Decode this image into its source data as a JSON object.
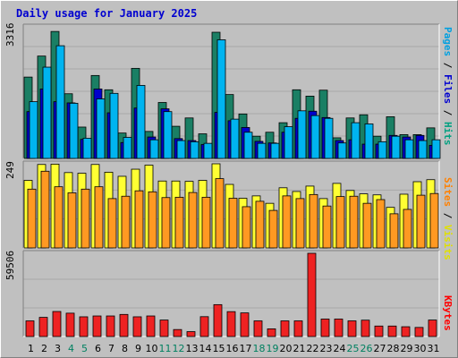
{
  "chart_data": {
    "type": "bar",
    "title": "Daily usage for January 2025",
    "days": [
      "1",
      "2",
      "3",
      "4",
      "5",
      "6",
      "7",
      "8",
      "9",
      "10",
      "11",
      "12",
      "13",
      "14",
      "15",
      "16",
      "17",
      "18",
      "19",
      "20",
      "21",
      "22",
      "23",
      "24",
      "25",
      "26",
      "27",
      "28",
      "29",
      "30",
      "31"
    ],
    "weekend_days": [
      "4",
      "5",
      "11",
      "12",
      "18",
      "19",
      "25",
      "26"
    ],
    "panels": [
      {
        "ymax_label": "3316",
        "ymax": 3316,
        "legend_parts": [
          {
            "text": "Pages",
            "color": "#00a0e0"
          },
          {
            "text": " / ",
            "color": "#000000"
          },
          {
            "text": "Files",
            "color": "#0000d0"
          },
          {
            "text": " / ",
            "color": "#000000"
          },
          {
            "text": "Hits",
            "color": "#00a080"
          }
        ],
        "series": [
          {
            "name": "Hits",
            "color": "#1a7f64",
            "values": [
              2050,
              2580,
              3200,
              1630,
              790,
              2090,
              1730,
              640,
              2270,
              680,
              1410,
              810,
              1020,
              620,
              3180,
              1610,
              1120,
              560,
              660,
              900,
              1730,
              1570,
              1720,
              520,
              1020,
              1100,
              560,
              1050,
              600,
              600,
              770
            ]
          },
          {
            "name": "Files",
            "color": "#0000cc",
            "values": [
              1180,
              1750,
              1430,
              1400,
              480,
              1750,
              1150,
              400,
              1270,
              540,
              1250,
              500,
              450,
              350,
              1160,
              950,
              780,
              430,
              390,
              660,
              1010,
              1190,
              1030,
              450,
              470,
              360,
              360,
              580,
              540,
              580,
              330
            ]
          },
          {
            "name": "Pages",
            "color": "#00b4f0",
            "values": [
              1430,
              2300,
              2840,
              1390,
              510,
              1500,
              1640,
              530,
              1840,
              470,
              1180,
              450,
              420,
              380,
              2990,
              990,
              660,
              380,
              380,
              800,
              1200,
              1080,
              1010,
              390,
              900,
              870,
              420,
              560,
              470,
              450,
              470
            ]
          }
        ]
      },
      {
        "ymax_label": "249",
        "ymax": 249,
        "legend_parts": [
          {
            "text": "Sites",
            "color": "#ff8000"
          },
          {
            "text": " / ",
            "color": "#000000"
          },
          {
            "text": "Visits",
            "color": "#e0e000"
          }
        ],
        "series": [
          {
            "name": "Visits",
            "color": "#ffff33",
            "values": [
              200,
              247,
              248,
              223,
              221,
              247,
              224,
              212,
              233,
              245,
              198,
              198,
              197,
              200,
              249,
              188,
              147,
              154,
              132,
              178,
              167,
              183,
              146,
              191,
              170,
              160,
              157,
              120,
              159,
              196,
              202
            ]
          },
          {
            "name": "Sites",
            "color": "#ff9922",
            "values": [
              174,
              227,
              181,
              163,
              174,
              181,
              146,
              153,
              169,
              166,
              149,
              150,
              164,
              150,
              205,
              147,
              122,
              138,
              111,
              154,
              146,
              158,
              124,
              152,
              153,
              132,
              143,
              101,
              114,
              156,
              161
            ]
          }
        ]
      },
      {
        "ymax_label": "59506",
        "ymax": 59506,
        "legend_parts": [
          {
            "text": "KBytes",
            "color": "#ff0000"
          }
        ],
        "series": [
          {
            "name": "KBytes",
            "color": "#ee2222",
            "values": [
              11200,
              13700,
              17900,
              16700,
              14100,
              14700,
              14700,
              15800,
              14100,
              14700,
              11800,
              5000,
              3500,
              14200,
              22800,
              17800,
              16900,
              11200,
              5500,
              11200,
              11200,
              59506,
              12500,
              12500,
              11200,
              11700,
              7500,
              7500,
              7000,
              6500,
              11800
            ]
          }
        ]
      }
    ]
  }
}
